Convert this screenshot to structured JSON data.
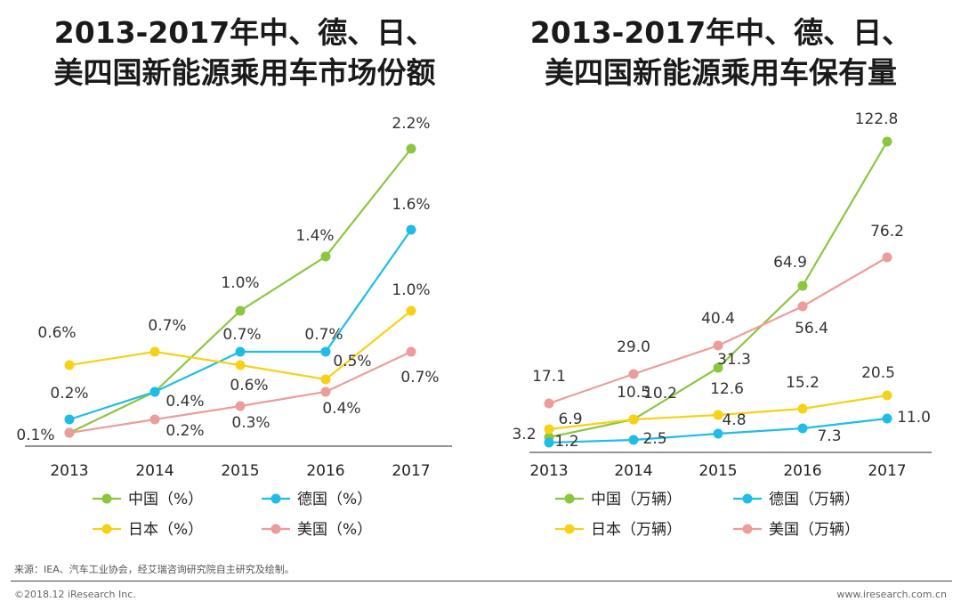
{
  "titles": {
    "left": [
      "2013-2017年中、德、日、",
      "美四国新能源乘用车市场份额"
    ],
    "right": [
      "2013-2017年中、德、日、",
      "美四国新能源乘用车保有量"
    ]
  },
  "chart_data": [
    {
      "type": "line",
      "title": "2013-2017年中、德、日、美四国新能源乘用车市场份额",
      "categories": [
        "2013",
        "2014",
        "2015",
        "2016",
        "2017"
      ],
      "ylim": [
        0,
        2.4
      ],
      "series": [
        {
          "name": "中国（%）",
          "color": "#8cc63f",
          "values": [
            0.1,
            0.4,
            1.0,
            1.4,
            2.2
          ],
          "labels": [
            "0.1%",
            "",
            "1.0%",
            "1.4%",
            "2.2%"
          ]
        },
        {
          "name": "德国（%）",
          "color": "#1fbde5",
          "values": [
            0.2,
            0.4,
            0.7,
            0.7,
            1.6
          ],
          "labels": [
            "0.2%",
            "0.4%",
            "0.7%",
            "0.7%",
            "1.6%"
          ]
        },
        {
          "name": "日本（%）",
          "color": "#f7d116",
          "values": [
            0.6,
            0.7,
            0.6,
            0.5,
            1.0
          ],
          "labels": [
            "0.6%",
            "0.7%",
            "0.6%",
            "0.5%",
            "1.0%"
          ]
        },
        {
          "name": "美国（%）",
          "color": "#ec9d9b",
          "values": [
            0.1,
            0.2,
            0.3,
            0.4,
            0.7
          ],
          "labels": [
            "",
            "0.2%",
            "0.3%",
            "0.4%",
            "0.7%"
          ]
        }
      ]
    },
    {
      "type": "line",
      "title": "2013-2017年中、德、日、美四国新能源乘用车保有量",
      "categories": [
        "2013",
        "2014",
        "2015",
        "2016",
        "2017"
      ],
      "ylim": [
        0,
        140
      ],
      "series": [
        {
          "name": "中国（万辆）",
          "color": "#8cc63f",
          "values": [
            3.2,
            10.5,
            31.3,
            64.9,
            122.8
          ],
          "labels": [
            "3.2",
            "10.5",
            "31.3",
            "64.9",
            "122.8"
          ]
        },
        {
          "name": "德国（万辆）",
          "color": "#1fbde5",
          "values": [
            1.2,
            2.5,
            4.8,
            7.3,
            11.0
          ],
          "labels": [
            "1.2",
            "2.5",
            "4.8",
            "7.3",
            "11.0"
          ]
        },
        {
          "name": "日本（万辆）",
          "color": "#f7d116",
          "values": [
            6.9,
            10.2,
            12.6,
            15.2,
            20.5
          ],
          "labels": [
            "6.9",
            "10.2",
            "12.6",
            "15.2",
            "20.5"
          ]
        },
        {
          "name": "美国（万辆）",
          "color": "#ec9d9b",
          "values": [
            17.1,
            29.0,
            40.4,
            56.4,
            76.2
          ],
          "labels": [
            "17.1",
            "29.0",
            "40.4",
            "56.4",
            "76.2"
          ]
        }
      ]
    }
  ],
  "footer": {
    "source": "来源：IEA、汽车工业协会，经艾瑞咨询研究院自主研究及绘制。",
    "copyright": "©2018.12 iResearch Inc.",
    "website": "www.iresearch.com.cn"
  }
}
